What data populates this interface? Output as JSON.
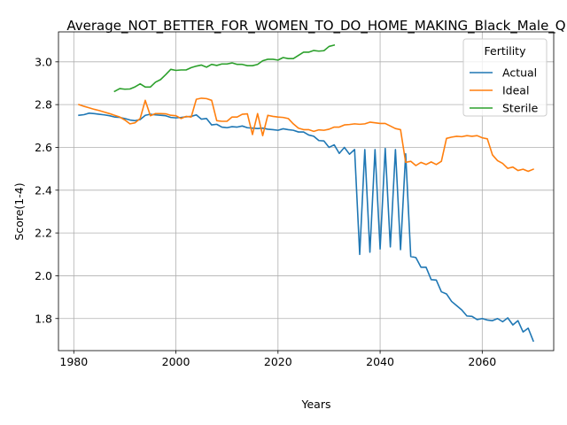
{
  "chart_data": {
    "type": "line",
    "title": "Average_NOT_BETTER_FOR_WOMEN_TO_DO_HOME_MAKING_Black_Male_Q",
    "xlabel": "Years",
    "ylabel": "Score(1-4)",
    "xlim": [
      1977,
      2074
    ],
    "ylim": [
      1.65,
      3.14
    ],
    "xticks": [
      1980,
      2000,
      2020,
      2040,
      2060
    ],
    "yticks": [
      1.8,
      2.0,
      2.2,
      2.4,
      2.6,
      2.8,
      3.0
    ],
    "xtick_labels": [
      "1980",
      "2000",
      "2020",
      "2040",
      "2060"
    ],
    "ytick_labels": [
      "1.8",
      "2.0",
      "2.2",
      "2.4",
      "2.6",
      "2.8",
      "3.0"
    ],
    "grid": true,
    "legend": {
      "title": "Fertility",
      "placement": "top-right"
    },
    "series": [
      {
        "name": "Actual",
        "color": "#1f77b4",
        "x": [
          1981,
          1982,
          1983,
          1984,
          1985,
          1986,
          1987,
          1988,
          1989,
          1990,
          1991,
          1992,
          1993,
          1994,
          1995,
          1996,
          1997,
          1998,
          1999,
          2000,
          2001,
          2002,
          2003,
          2004,
          2005,
          2006,
          2007,
          2008,
          2009,
          2010,
          2011,
          2012,
          2013,
          2014,
          2015,
          2016,
          2017,
          2018,
          2019,
          2020,
          2021,
          2022,
          2023,
          2024,
          2025,
          2026,
          2027,
          2028,
          2029,
          2030,
          2031,
          2032,
          2033,
          2034,
          2035,
          2036,
          2037,
          2038,
          2039,
          2040,
          2041,
          2042,
          2043,
          2044,
          2045,
          2046,
          2047,
          2048,
          2049,
          2050,
          2051,
          2052,
          2053,
          2054,
          2055,
          2056,
          2057,
          2058,
          2059,
          2060,
          2061,
          2062,
          2063,
          2064,
          2065,
          2066,
          2067,
          2068,
          2069,
          2070
        ],
        "values": [
          2.75,
          2.753,
          2.76,
          2.758,
          2.755,
          2.752,
          2.748,
          2.742,
          2.74,
          2.735,
          2.728,
          2.725,
          2.73,
          2.75,
          2.755,
          2.752,
          2.75,
          2.748,
          2.74,
          2.738,
          2.74,
          2.743,
          2.745,
          2.752,
          2.732,
          2.735,
          2.705,
          2.708,
          2.695,
          2.692,
          2.697,
          2.695,
          2.7,
          2.692,
          2.69,
          2.688,
          2.69,
          2.685,
          2.683,
          2.68,
          2.687,
          2.683,
          2.68,
          2.672,
          2.672,
          2.658,
          2.652,
          2.632,
          2.63,
          2.6,
          2.612,
          2.572,
          2.6,
          2.568,
          2.59,
          2.1,
          2.59,
          2.11,
          2.59,
          2.125,
          2.595,
          2.135,
          2.59,
          2.122,
          2.57,
          2.09,
          2.085,
          2.04,
          2.04,
          1.982,
          1.98,
          1.925,
          1.915,
          1.88,
          1.86,
          1.84,
          1.812,
          1.81,
          1.795,
          1.8,
          1.793,
          1.79,
          1.8,
          1.785,
          1.803,
          1.77,
          1.79,
          1.737,
          1.755,
          1.695
        ]
      },
      {
        "name": "Ideal",
        "color": "#ff7f0e",
        "x": [
          1981,
          1982,
          1983,
          1984,
          1985,
          1986,
          1987,
          1988,
          1989,
          1990,
          1991,
          1992,
          1993,
          1994,
          1995,
          1996,
          1997,
          1998,
          1999,
          2000,
          2001,
          2002,
          2003,
          2004,
          2005,
          2006,
          2007,
          2008,
          2009,
          2010,
          2011,
          2012,
          2013,
          2014,
          2015,
          2016,
          2017,
          2018,
          2019,
          2020,
          2021,
          2022,
          2023,
          2024,
          2025,
          2026,
          2027,
          2028,
          2029,
          2030,
          2031,
          2032,
          2033,
          2034,
          2035,
          2036,
          2037,
          2038,
          2039,
          2040,
          2041,
          2042,
          2043,
          2044,
          2045,
          2046,
          2047,
          2048,
          2049,
          2050,
          2051,
          2052,
          2053,
          2054,
          2055,
          2056,
          2057,
          2058,
          2059,
          2060,
          2061,
          2062,
          2063,
          2064,
          2065,
          2066,
          2067,
          2068,
          2069,
          2070
        ],
        "values": [
          2.8,
          2.792,
          2.785,
          2.778,
          2.772,
          2.765,
          2.758,
          2.75,
          2.742,
          2.728,
          2.71,
          2.715,
          2.735,
          2.82,
          2.748,
          2.758,
          2.758,
          2.757,
          2.75,
          2.748,
          2.735,
          2.745,
          2.742,
          2.825,
          2.83,
          2.828,
          2.82,
          2.725,
          2.722,
          2.722,
          2.742,
          2.742,
          2.755,
          2.757,
          2.66,
          2.758,
          2.655,
          2.75,
          2.745,
          2.742,
          2.74,
          2.735,
          2.71,
          2.69,
          2.683,
          2.683,
          2.675,
          2.682,
          2.68,
          2.685,
          2.695,
          2.695,
          2.705,
          2.707,
          2.71,
          2.708,
          2.71,
          2.718,
          2.715,
          2.712,
          2.712,
          2.7,
          2.688,
          2.683,
          2.53,
          2.535,
          2.515,
          2.53,
          2.52,
          2.532,
          2.52,
          2.535,
          2.642,
          2.648,
          2.652,
          2.65,
          2.655,
          2.652,
          2.655,
          2.645,
          2.64,
          2.565,
          2.538,
          2.525,
          2.502,
          2.508,
          2.492,
          2.498,
          2.488,
          2.498
        ]
      },
      {
        "name": "Sterile",
        "color": "#2ca02c",
        "x": [
          1988,
          1989,
          1990,
          1991,
          1992,
          1993,
          1994,
          1995,
          1996,
          1997,
          1998,
          1999,
          2000,
          2001,
          2002,
          2003,
          2004,
          2005,
          2006,
          2007,
          2008,
          2009,
          2010,
          2011,
          2012,
          2013,
          2014,
          2015,
          2016,
          2017,
          2018,
          2019,
          2020,
          2021,
          2022,
          2023,
          2024,
          2025,
          2026,
          2027,
          2028,
          2029,
          2030,
          2031
        ],
        "values": [
          2.862,
          2.875,
          2.872,
          2.873,
          2.883,
          2.897,
          2.882,
          2.882,
          2.905,
          2.917,
          2.94,
          2.965,
          2.96,
          2.962,
          2.962,
          2.973,
          2.98,
          2.985,
          2.975,
          2.988,
          2.983,
          2.99,
          2.99,
          2.995,
          2.988,
          2.988,
          2.982,
          2.982,
          2.988,
          3.005,
          3.012,
          3.012,
          3.008,
          3.02,
          3.015,
          3.015,
          3.03,
          3.045,
          3.045,
          3.053,
          3.05,
          3.052,
          3.072,
          3.078
        ]
      }
    ]
  }
}
